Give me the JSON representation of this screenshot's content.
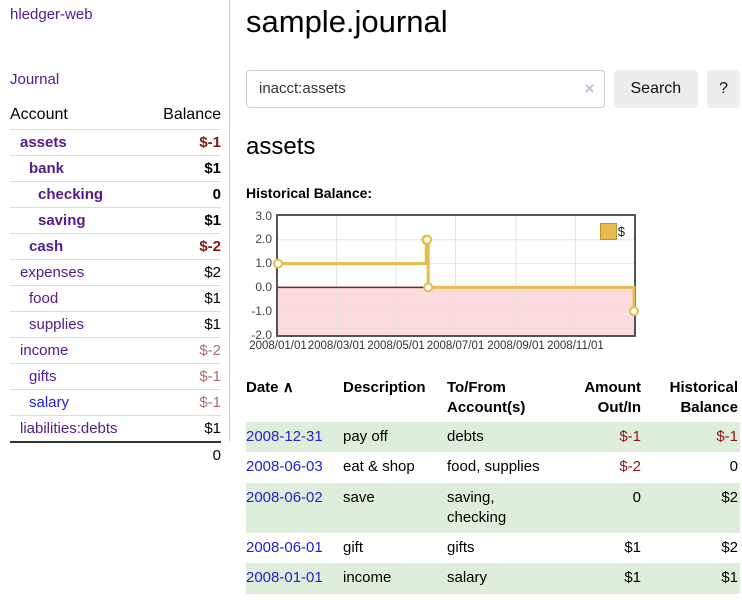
{
  "app": {
    "title": "hledger-web"
  },
  "sidebar": {
    "journal_link": "Journal",
    "table": {
      "account_header": "Account",
      "balance_header": "Balance",
      "rows": [
        {
          "account": "assets",
          "balance": "$-1",
          "depth": 1,
          "bold": true,
          "neg": "strong"
        },
        {
          "account": "bank",
          "balance": "$1",
          "depth": 2,
          "bold": true,
          "neg": "none"
        },
        {
          "account": "checking",
          "balance": "0",
          "depth": 3,
          "bold": true,
          "neg": "none"
        },
        {
          "account": "saving",
          "balance": "$1",
          "depth": 3,
          "bold": true,
          "neg": "none"
        },
        {
          "account": "cash",
          "balance": "$-2",
          "depth": 2,
          "bold": true,
          "neg": "strong"
        },
        {
          "account": "expenses",
          "balance": "$2",
          "depth": 1,
          "bold": false,
          "neg": "none"
        },
        {
          "account": "food",
          "balance": "$1",
          "depth": 2,
          "bold": false,
          "neg": "none"
        },
        {
          "account": "supplies",
          "balance": "$1",
          "depth": 2,
          "bold": false,
          "neg": "none"
        },
        {
          "account": "income",
          "balance": "$-2",
          "depth": 1,
          "bold": false,
          "neg": "soft"
        },
        {
          "account": "gifts",
          "balance": "$-1",
          "depth": 2,
          "bold": false,
          "neg": "soft"
        },
        {
          "account": "salary",
          "balance": "$-1",
          "depth": 2,
          "bold": false,
          "neg": "soft",
          "link_color": "blue"
        },
        {
          "account": "liabilities:debts",
          "balance": "$1",
          "depth": 1,
          "bold": false,
          "neg": "none"
        }
      ],
      "total": "0"
    }
  },
  "main": {
    "title": "sample.journal",
    "search": {
      "value": "inacct:assets",
      "clear_icon": "×",
      "button_label": "Search",
      "help_label": "?"
    },
    "account_title": "assets",
    "chart_label": "Historical Balance:"
  },
  "chart_data": {
    "type": "line",
    "step": true,
    "title": "Historical Balance",
    "legend": "$",
    "legend_position": "top-right",
    "series": [
      {
        "name": "$",
        "color": "#e8bc4d",
        "points": [
          [
            "2008-01-01",
            1
          ],
          [
            "2008-06-01",
            2
          ],
          [
            "2008-06-02",
            2
          ],
          [
            "2008-06-03",
            0
          ],
          [
            "2008-12-31",
            -1
          ]
        ]
      }
    ],
    "xrange": [
      "2008-01-01",
      "2008-12-31"
    ],
    "ylim": [
      -2,
      3
    ],
    "yticks": [
      3.0,
      2.0,
      1.0,
      0.0,
      -1.0,
      -2.0
    ],
    "xticks": [
      "2008/01/01",
      "2008/03/01",
      "2008/05/01",
      "2008/07/01",
      "2008/09/01",
      "2008/11/01"
    ],
    "grid": true,
    "negative_region_color": "#fbdbdb",
    "zero_line_color": "#8b1a1a"
  },
  "register": {
    "headers": {
      "date": "Date",
      "sort_indicator": "∧",
      "description": "Description",
      "accounts": "To/From Account(s)",
      "amount": "Amount Out/In",
      "balance": "Historical Balance"
    },
    "rows": [
      {
        "date": "2008-12-31",
        "description": "pay off",
        "accounts": "debts",
        "amount": "$-1",
        "balance": "$-1"
      },
      {
        "date": "2008-06-03",
        "description": "eat & shop",
        "accounts": "food, supplies",
        "amount": "$-2",
        "balance": "0"
      },
      {
        "date": "2008-06-02",
        "description": "save",
        "accounts": "saving,\nchecking",
        "amount": "0",
        "balance": "$2"
      },
      {
        "date": "2008-06-01",
        "description": "gift",
        "accounts": "gifts",
        "amount": "$1",
        "balance": "$2"
      },
      {
        "date": "2008-01-01",
        "description": "income",
        "accounts": "salary",
        "amount": "$1",
        "balance": "$1"
      }
    ]
  }
}
